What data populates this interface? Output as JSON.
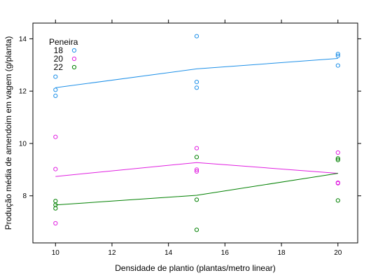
{
  "chart_data": {
    "type": "scatter",
    "xlabel": "Densidade de plantio (plantas/metro linear)",
    "ylabel": "Produção média de amendoim em vagem (g/planta)",
    "xlim": [
      9.2,
      20.7
    ],
    "ylim": [
      6.2,
      14.6
    ],
    "x_ticks": [
      10,
      12,
      14,
      16,
      18,
      20
    ],
    "y_ticks": [
      8,
      10,
      12,
      14
    ],
    "grid": false,
    "legend_title": "Peneira",
    "legend_position": "top-left",
    "series": [
      {
        "name": "18",
        "color": "#1e90e8",
        "points": [
          [
            10,
            12.55
          ],
          [
            10,
            12.05
          ],
          [
            10,
            11.82
          ],
          [
            15,
            14.1
          ],
          [
            15,
            12.35
          ],
          [
            15,
            12.13
          ],
          [
            20,
            13.42
          ],
          [
            20,
            13.35
          ],
          [
            20,
            12.98
          ]
        ],
        "line": [
          [
            10,
            12.13
          ],
          [
            15,
            12.85
          ],
          [
            20,
            13.25
          ]
        ]
      },
      {
        "name": "20",
        "color": "#e020e0",
        "points": [
          [
            10,
            10.25
          ],
          [
            10,
            9.02
          ],
          [
            10,
            6.95
          ],
          [
            15,
            9.82
          ],
          [
            15,
            9.0
          ],
          [
            15,
            8.93
          ],
          [
            20,
            9.65
          ],
          [
            20,
            8.5
          ],
          [
            20,
            8.48
          ]
        ],
        "line": [
          [
            10,
            8.74
          ],
          [
            15,
            9.27
          ],
          [
            20,
            8.86
          ]
        ]
      },
      {
        "name": "22",
        "color": "#008000",
        "points": [
          [
            10,
            7.8
          ],
          [
            10,
            7.65
          ],
          [
            10,
            7.52
          ],
          [
            15,
            9.48
          ],
          [
            15,
            7.85
          ],
          [
            15,
            6.7
          ],
          [
            20,
            9.43
          ],
          [
            20,
            9.37
          ],
          [
            20,
            7.82
          ]
        ],
        "line": [
          [
            10,
            7.65
          ],
          [
            15,
            8.02
          ],
          [
            20,
            8.86
          ]
        ]
      }
    ]
  }
}
